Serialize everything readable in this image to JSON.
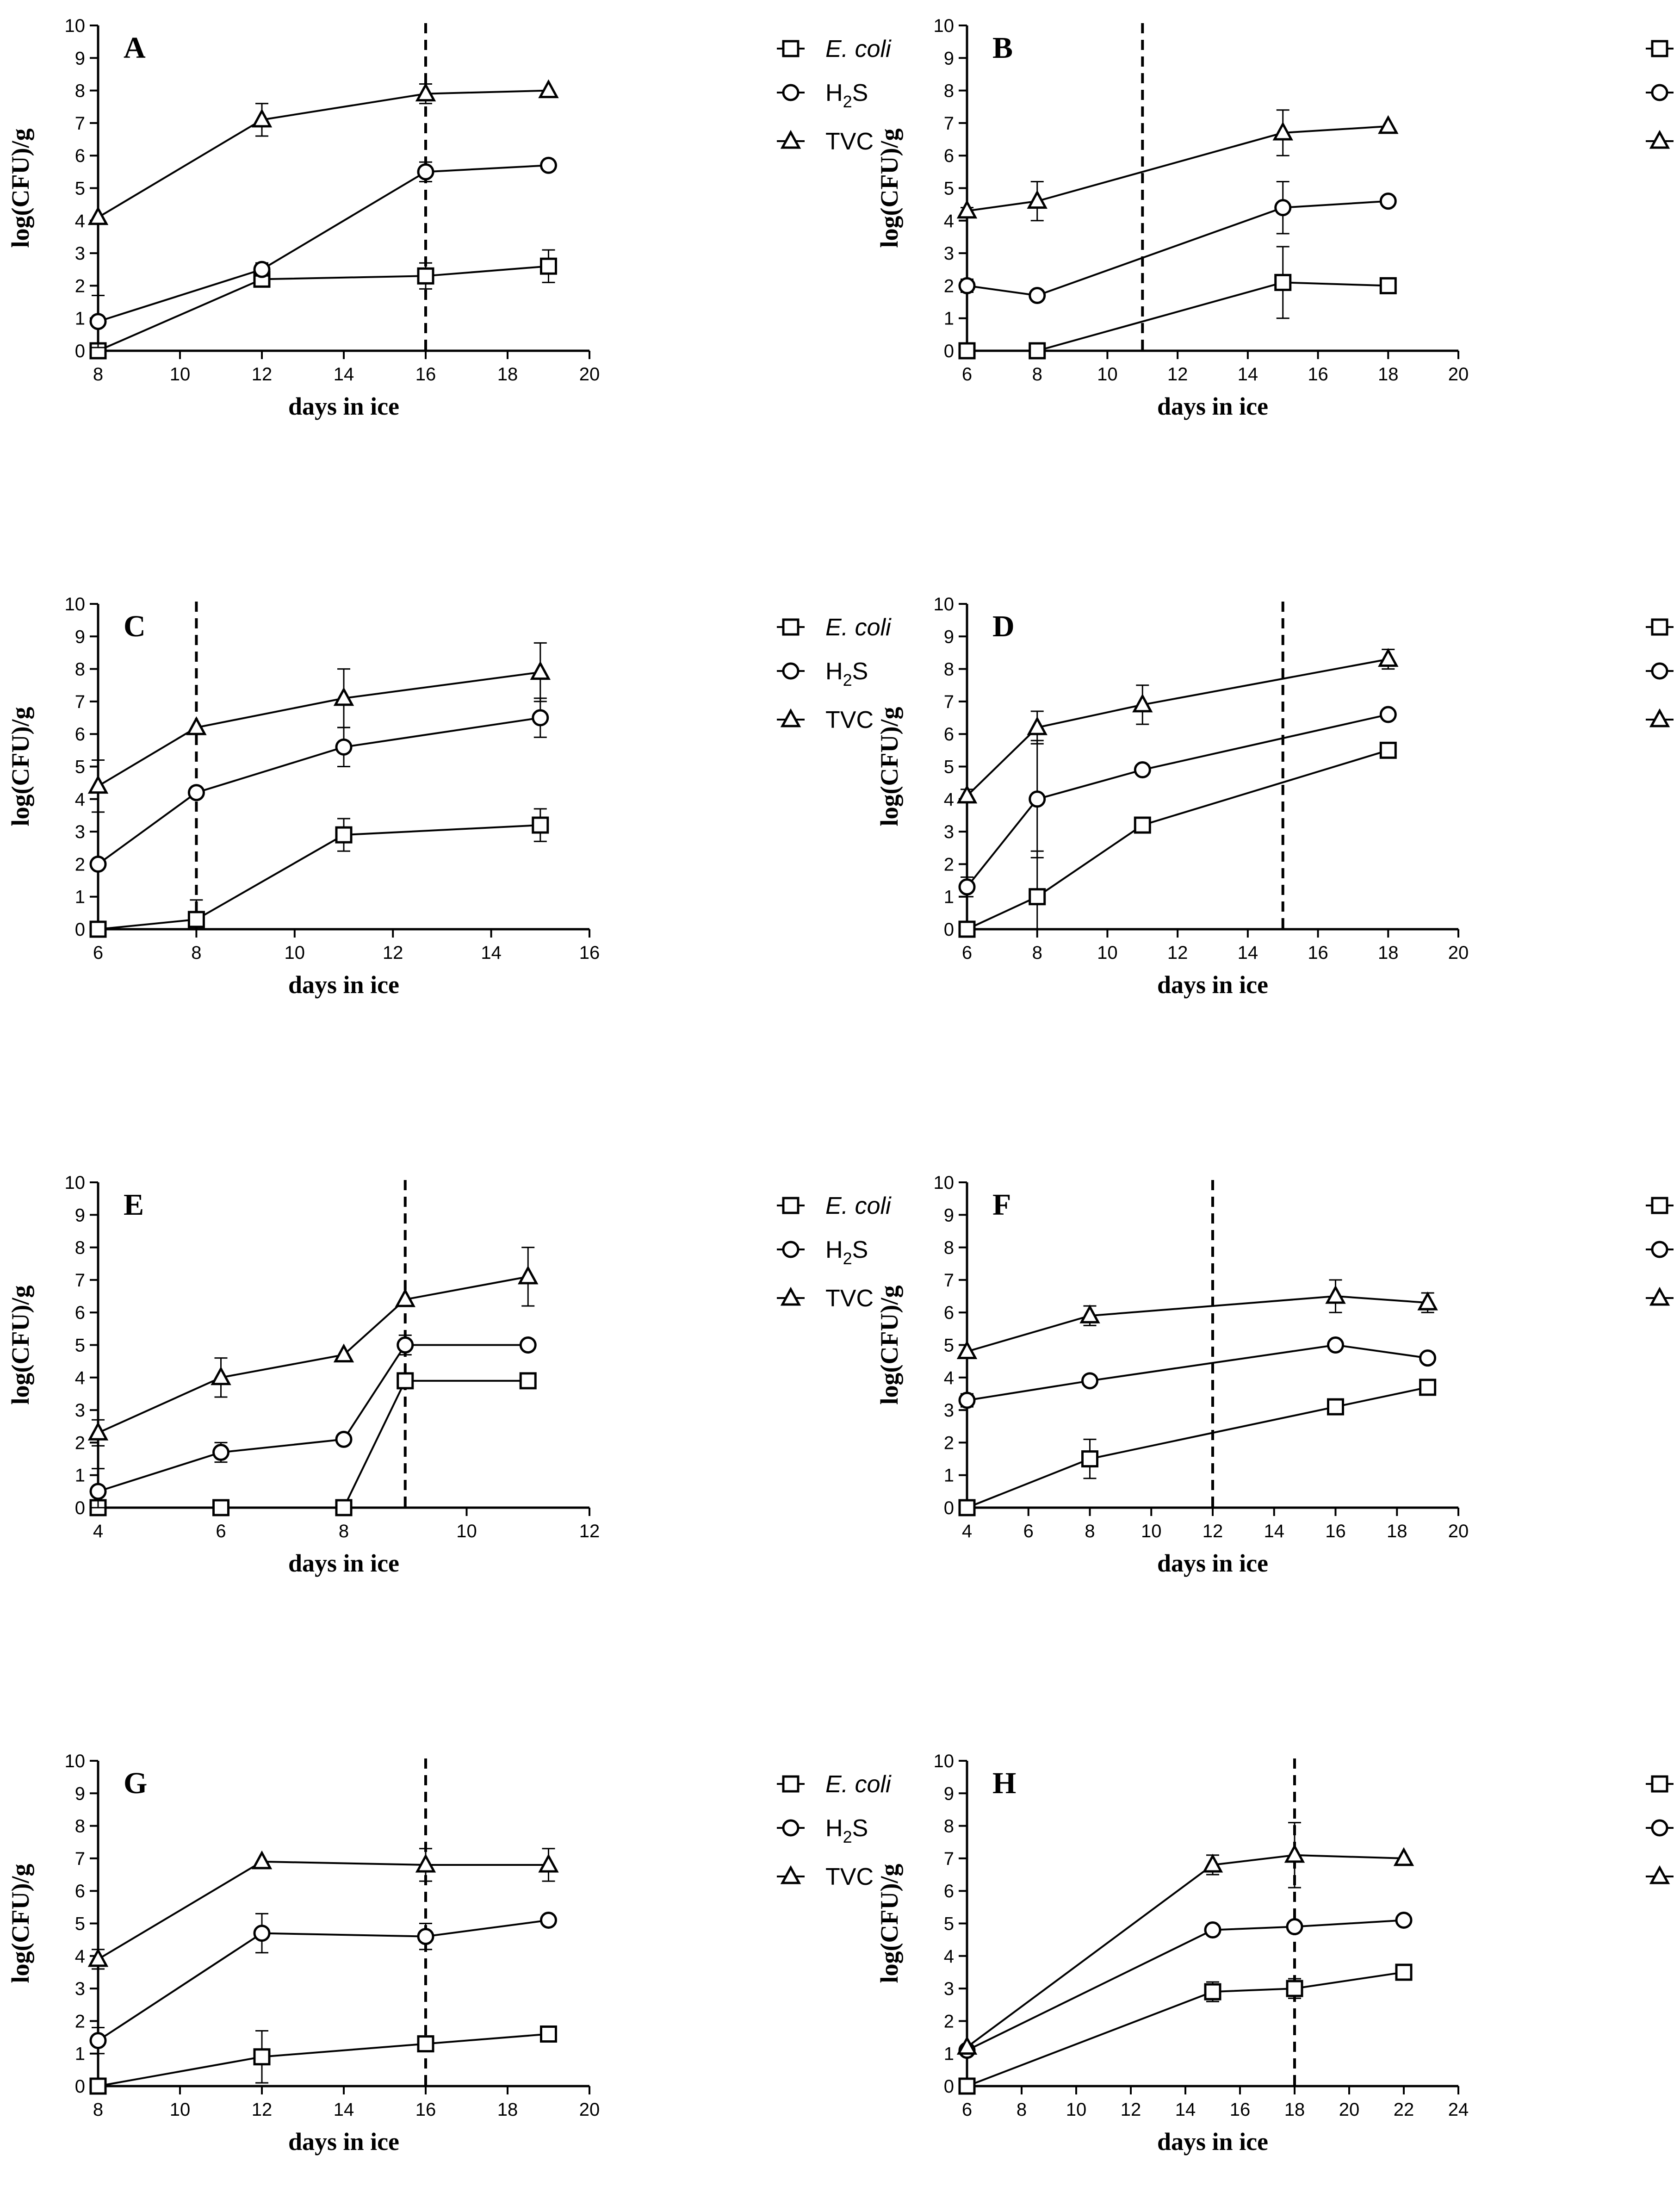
{
  "chart_data": [
    {
      "type": "line",
      "panel": "A",
      "xlabel": "days in ice",
      "ylabel": "log(CFU)/g",
      "xlim": [
        8,
        20
      ],
      "xticks": [
        8,
        10,
        12,
        14,
        16,
        18,
        20
      ],
      "ylim": [
        0,
        10
      ],
      "yticks": [
        0,
        1,
        2,
        3,
        4,
        5,
        6,
        7,
        8,
        9,
        10
      ],
      "vline": 16,
      "series": [
        {
          "name": "E. coli",
          "marker": "square",
          "x": [
            8,
            12,
            16,
            19
          ],
          "y": [
            0,
            2.2,
            2.3,
            2.6
          ],
          "err": [
            0,
            0.2,
            0.4,
            0.5
          ]
        },
        {
          "name": "H2S",
          "marker": "circle",
          "x": [
            8,
            12,
            16,
            19
          ],
          "y": [
            0.9,
            2.5,
            5.5,
            5.7
          ],
          "err": [
            0.8,
            0.2,
            0.3,
            0
          ]
        },
        {
          "name": "TVC",
          "marker": "triangle",
          "x": [
            8,
            12,
            16,
            19
          ],
          "y": [
            4.1,
            7.1,
            7.9,
            8.0
          ],
          "err": [
            0,
            0.5,
            0.3,
            0
          ]
        }
      ]
    },
    {
      "type": "line",
      "panel": "B",
      "xlabel": "days in ice",
      "ylabel": "log(CFU)/g",
      "xlim": [
        6,
        20
      ],
      "xticks": [
        6,
        8,
        10,
        12,
        14,
        16,
        18,
        20
      ],
      "ylim": [
        0,
        10
      ],
      "yticks": [
        0,
        1,
        2,
        3,
        4,
        5,
        6,
        7,
        8,
        9,
        10
      ],
      "vline": 11,
      "series": [
        {
          "name": "E. coli",
          "marker": "square",
          "x": [
            6,
            8,
            15,
            18
          ],
          "y": [
            0,
            0,
            2.1,
            2.0
          ],
          "err": [
            0,
            0,
            1.1,
            0
          ]
        },
        {
          "name": "H2S",
          "marker": "circle",
          "x": [
            6,
            8,
            15,
            18
          ],
          "y": [
            2.0,
            1.7,
            4.4,
            4.6
          ],
          "err": [
            0.2,
            0,
            0.8,
            0
          ]
        },
        {
          "name": "TVC",
          "marker": "triangle",
          "x": [
            6,
            8,
            15,
            18
          ],
          "y": [
            4.3,
            4.6,
            6.7,
            6.9
          ],
          "err": [
            0.1,
            0.6,
            0.7,
            0
          ]
        }
      ]
    },
    {
      "type": "line",
      "panel": "C",
      "xlabel": "days in ice",
      "ylabel": "log(CFU)/g",
      "xlim": [
        6,
        16
      ],
      "xticks": [
        6,
        8,
        10,
        12,
        14,
        16
      ],
      "ylim": [
        0,
        10
      ],
      "yticks": [
        0,
        1,
        2,
        3,
        4,
        5,
        6,
        7,
        8,
        9,
        10
      ],
      "vline": 8,
      "series": [
        {
          "name": "E. coli",
          "marker": "square",
          "x": [
            6,
            8,
            11,
            15
          ],
          "y": [
            0,
            0.3,
            2.9,
            3.2
          ],
          "err": [
            0,
            0.6,
            0.5,
            0.5
          ]
        },
        {
          "name": "H2S",
          "marker": "circle",
          "x": [
            6,
            8,
            11,
            15
          ],
          "y": [
            2.0,
            4.2,
            5.6,
            6.5
          ],
          "err": [
            0,
            0,
            0.6,
            0.6
          ]
        },
        {
          "name": "TVC",
          "marker": "triangle",
          "x": [
            6,
            8,
            11,
            15
          ],
          "y": [
            4.4,
            6.2,
            7.1,
            7.9
          ],
          "err": [
            0.8,
            0,
            0.9,
            0.9
          ]
        }
      ]
    },
    {
      "type": "line",
      "panel": "D",
      "xlabel": "days in ice",
      "ylabel": "log(CFU)/g",
      "xlim": [
        6,
        20
      ],
      "xticks": [
        6,
        8,
        10,
        12,
        14,
        16,
        18,
        20
      ],
      "ylim": [
        0,
        10
      ],
      "yticks": [
        0,
        1,
        2,
        3,
        4,
        5,
        6,
        7,
        8,
        9,
        10
      ],
      "vline": 15,
      "series": [
        {
          "name": "E. coli",
          "marker": "square",
          "x": [
            6,
            8,
            11,
            18
          ],
          "y": [
            0,
            1.0,
            3.2,
            5.5
          ],
          "err": [
            0,
            1.4,
            0,
            0
          ]
        },
        {
          "name": "H2S",
          "marker": "circle",
          "x": [
            6,
            8,
            11,
            18
          ],
          "y": [
            1.3,
            4.0,
            4.9,
            6.6
          ],
          "err": [
            0.3,
            1.8,
            0,
            0
          ]
        },
        {
          "name": "TVC",
          "marker": "triangle",
          "x": [
            6,
            8,
            11,
            18
          ],
          "y": [
            4.1,
            6.2,
            6.9,
            8.3
          ],
          "err": [
            0.2,
            0.5,
            0.6,
            0.3
          ]
        }
      ]
    },
    {
      "type": "line",
      "panel": "E",
      "xlabel": "days in ice",
      "ylabel": "log(CFU)/g",
      "xlim": [
        4,
        12
      ],
      "xticks": [
        4,
        6,
        8,
        10,
        12
      ],
      "ylim": [
        0,
        10
      ],
      "yticks": [
        0,
        1,
        2,
        3,
        4,
        5,
        6,
        7,
        8,
        9,
        10
      ],
      "vline": 9,
      "series": [
        {
          "name": "E. coli",
          "marker": "square",
          "x": [
            4,
            6,
            8,
            9,
            11
          ],
          "y": [
            0,
            0,
            0,
            3.9,
            3.9
          ],
          "err": [
            0,
            0,
            0,
            0,
            0
          ]
        },
        {
          "name": "H2S",
          "marker": "circle",
          "x": [
            4,
            6,
            8,
            9,
            11
          ],
          "y": [
            0.5,
            1.7,
            2.1,
            5.0,
            5.0
          ],
          "err": [
            0.7,
            0.3,
            0,
            0.3,
            0
          ]
        },
        {
          "name": "TVC",
          "marker": "triangle",
          "x": [
            4,
            6,
            8,
            9,
            11
          ],
          "y": [
            2.3,
            4.0,
            4.7,
            6.4,
            7.1
          ],
          "err": [
            0.4,
            0.6,
            0,
            0,
            0.9
          ]
        }
      ]
    },
    {
      "type": "line",
      "panel": "F",
      "xlabel": "days in ice",
      "ylabel": "log(CFU)/g",
      "xlim": [
        4,
        20
      ],
      "xticks": [
        4,
        6,
        8,
        10,
        12,
        14,
        16,
        18,
        20
      ],
      "ylim": [
        0,
        10
      ],
      "yticks": [
        0,
        1,
        2,
        3,
        4,
        5,
        6,
        7,
        8,
        9,
        10
      ],
      "vline": 12,
      "series": [
        {
          "name": "E. coli",
          "marker": "square",
          "x": [
            4,
            8,
            16,
            19
          ],
          "y": [
            0,
            1.5,
            3.1,
            3.7
          ],
          "err": [
            0,
            0.6,
            0,
            0.2
          ]
        },
        {
          "name": "H2S",
          "marker": "circle",
          "x": [
            4,
            8,
            16,
            19
          ],
          "y": [
            3.3,
            3.9,
            5.0,
            4.6
          ],
          "err": [
            0.2,
            0,
            0,
            0
          ]
        },
        {
          "name": "TVC",
          "marker": "triangle",
          "x": [
            4,
            8,
            16,
            19
          ],
          "y": [
            4.8,
            5.9,
            6.5,
            6.3
          ],
          "err": [
            0,
            0.3,
            0.5,
            0.3
          ]
        }
      ]
    },
    {
      "type": "line",
      "panel": "G",
      "xlabel": "days in ice",
      "ylabel": "log(CFU)/g",
      "xlim": [
        8,
        20
      ],
      "xticks": [
        8,
        10,
        12,
        14,
        16,
        18,
        20
      ],
      "ylim": [
        0,
        10
      ],
      "yticks": [
        0,
        1,
        2,
        3,
        4,
        5,
        6,
        7,
        8,
        9,
        10
      ],
      "vline": 16,
      "series": [
        {
          "name": "E. coli",
          "marker": "square",
          "x": [
            8,
            12,
            16,
            19
          ],
          "y": [
            0,
            0.9,
            1.3,
            1.6
          ],
          "err": [
            0,
            0.8,
            0,
            0
          ]
        },
        {
          "name": "H2S",
          "marker": "circle",
          "x": [
            8,
            12,
            16,
            19
          ],
          "y": [
            1.4,
            4.7,
            4.6,
            5.1
          ],
          "err": [
            0.4,
            0.6,
            0.4,
            0
          ]
        },
        {
          "name": "TVC",
          "marker": "triangle",
          "x": [
            8,
            12,
            16,
            19
          ],
          "y": [
            3.9,
            6.9,
            6.8,
            6.8
          ],
          "err": [
            0.3,
            0,
            0.5,
            0.5
          ]
        }
      ]
    },
    {
      "type": "line",
      "panel": "H",
      "xlabel": "days in ice",
      "ylabel": "log(CFU)/g",
      "xlim": [
        6,
        24
      ],
      "xticks": [
        6,
        8,
        10,
        12,
        14,
        16,
        18,
        20,
        22,
        24
      ],
      "ylim": [
        0,
        10
      ],
      "yticks": [
        0,
        1,
        2,
        3,
        4,
        5,
        6,
        7,
        8,
        9,
        10
      ],
      "vline": 18,
      "series": [
        {
          "name": "E. coli",
          "marker": "square",
          "x": [
            6,
            15,
            18,
            22
          ],
          "y": [
            0,
            2.9,
            3.0,
            3.5
          ],
          "err": [
            0,
            0.3,
            0.3,
            0
          ]
        },
        {
          "name": "H2S",
          "marker": "circle",
          "x": [
            6,
            15,
            18,
            22
          ],
          "y": [
            1.1,
            4.8,
            4.9,
            5.1
          ],
          "err": [
            0,
            0,
            0,
            0
          ]
        },
        {
          "name": "TVC",
          "marker": "triangle",
          "x": [
            6,
            15,
            18,
            22
          ],
          "y": [
            1.2,
            6.8,
            7.1,
            7.0
          ],
          "err": [
            0,
            0.3,
            1.0,
            0
          ]
        }
      ]
    }
  ],
  "legend": {
    "ecoli_label": "E. coli",
    "h2s_prefix": "H",
    "h2s_sub": "2",
    "h2s_suffix": "S",
    "tvc_label": "TVC"
  }
}
